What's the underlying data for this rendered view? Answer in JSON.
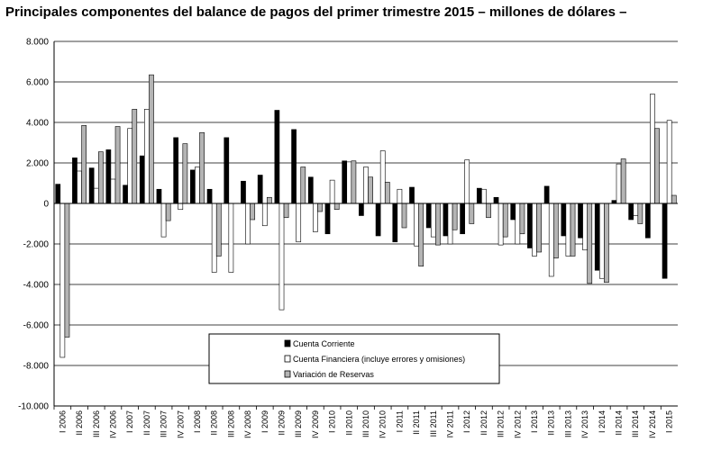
{
  "chart_data": {
    "type": "bar",
    "title": "Principales componentes del balance de pagos del primer trimestre 2015 – millones de dólares –",
    "ylim": [
      -10000,
      8000
    ],
    "yticks": [
      8000,
      6000,
      4000,
      2000,
      0,
      -2000,
      -4000,
      -6000,
      -8000,
      -10000
    ],
    "ytick_labels": [
      "8.000",
      "6.000",
      "4.000",
      "2.000",
      "0",
      "-2.000",
      "-4.000",
      "-6.000",
      "-8.000",
      "-10.000"
    ],
    "grid": "horizontal",
    "legend_position": "bottom-center",
    "colors": {
      "cuenta_corriente": "#000000",
      "cuenta_financiera": "#ffffff",
      "variacion_reservas": "#b4b4b4",
      "axis": "#000000",
      "grid": "#000000"
    },
    "categories": [
      "I 2006",
      "II 2006",
      "III 2006",
      "IV 2006",
      "I 2007",
      "II 2007",
      "III 2007",
      "IV 2007",
      "I 2008",
      "II 2008",
      "III 2008",
      "IV 2008",
      "I 2009",
      "II 2009",
      "III 2009",
      "IV 2009",
      "I 2010",
      "II 2010",
      "III 2010",
      "IV 2010",
      "I 2011",
      "II 2011",
      "III 2011",
      "IV 2011",
      "I 2012",
      "II 2012",
      "III 2012",
      "IV 2012",
      "I 2013",
      "II 2013",
      "III 2013",
      "IV 2013",
      "I 2014",
      "II 2014",
      "III 2014",
      "IV 2014",
      "I 2015"
    ],
    "series": [
      {
        "name": "Cuenta Corriente",
        "values": [
          950,
          2250,
          1750,
          2650,
          900,
          2350,
          700,
          3250,
          1650,
          700,
          3250,
          1100,
          1400,
          4600,
          3650,
          1300,
          -1500,
          2100,
          -600,
          -1600,
          -1900,
          800,
          -1200,
          -1600,
          -1500,
          750,
          300,
          -800,
          -2200,
          850,
          -1600,
          -1700,
          -3300,
          150,
          -800,
          -1700,
          -3700
        ]
      },
      {
        "name": "Cuenta Financiera (incluye errores y omisiones)",
        "values": [
          -7600,
          1600,
          750,
          1200,
          3700,
          4650,
          -1650,
          -300,
          1800,
          -3400,
          -3400,
          -2000,
          -1100,
          -5250,
          -1900,
          -1400,
          1150,
          2050,
          1800,
          2600,
          700,
          -2100,
          -1650,
          -2000,
          2150,
          700,
          -2050,
          -2000,
          -2600,
          -3600,
          -2600,
          -2300,
          -3700,
          1950,
          -600,
          5400,
          4100
        ]
      },
      {
        "name": "Variación de Reservas",
        "values": [
          -6600,
          3850,
          2550,
          3800,
          4650,
          6350,
          -850,
          2950,
          3500,
          -2600,
          0,
          -800,
          300,
          -700,
          1800,
          -400,
          -300,
          2100,
          1300,
          1050,
          -1200,
          -3100,
          -2050,
          -1300,
          -1000,
          -700,
          -1650,
          -1500,
          -2400,
          -2700,
          -2600,
          -3950,
          -3900,
          2200,
          -1000,
          3700,
          400
        ]
      }
    ]
  }
}
